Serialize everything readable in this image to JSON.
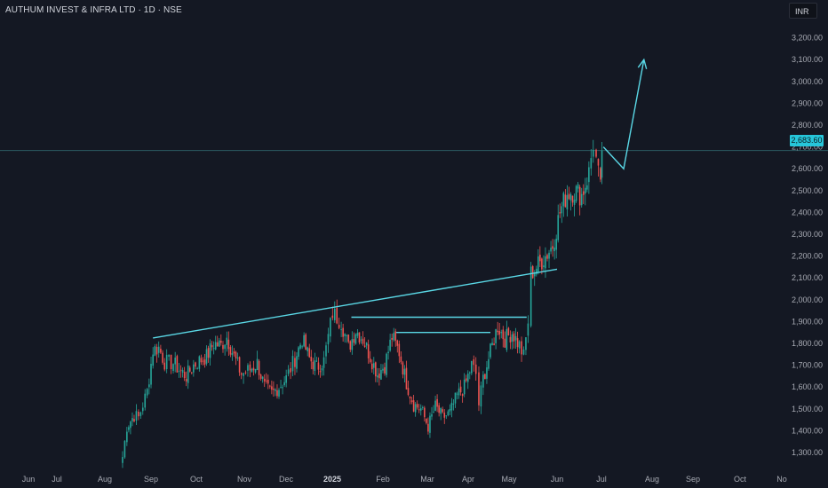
{
  "header": {
    "title": "AUTHUM INVEST & INFRA LTD · 1D · NSE",
    "currency": "INR"
  },
  "price_tag": "2,683.60",
  "colors": {
    "background": "#141823",
    "up": "#26a69a",
    "down": "#ef5350",
    "trendline": "#5ad8e6",
    "price_line": "#2b5a63"
  },
  "chart_data": {
    "type": "candlestick",
    "ylim": [
      1260,
      3260
    ],
    "y_ticks": [
      "1,300.00",
      "1,400.00",
      "1,500.00",
      "1,600.00",
      "1,700.00",
      "1,800.00",
      "1,900.00",
      "2,000.00",
      "2,100.00",
      "2,200.00",
      "2,300.00",
      "2,400.00",
      "2,500.00",
      "2,600.00",
      "2,700.00",
      "2,800.00",
      "2,900.00",
      "3,000.00",
      "3,100.00",
      "3,200.00"
    ],
    "x_ticks": [
      "Jun",
      "Jul",
      "Aug",
      "Sep",
      "Oct",
      "Nov",
      "Dec",
      "2025",
      "Feb",
      "Mar",
      "Apr",
      "May",
      "Jun",
      "Jul",
      "Aug",
      "Sep",
      "Oct",
      "No"
    ],
    "last_price": 2683.6,
    "anchors": [
      [
        "2024-08-05",
        1280
      ],
      [
        "2024-08-08",
        1420
      ],
      [
        "2024-08-13",
        1470
      ],
      [
        "2024-08-16",
        1460
      ],
      [
        "2024-08-22",
        1580
      ],
      [
        "2024-08-26",
        1770
      ],
      [
        "2024-08-30",
        1780
      ],
      [
        "2024-09-03",
        1715
      ],
      [
        "2024-09-09",
        1710
      ],
      [
        "2024-09-13",
        1680
      ],
      [
        "2024-09-18",
        1650
      ],
      [
        "2024-09-23",
        1700
      ],
      [
        "2024-09-27",
        1720
      ],
      [
        "2024-10-02",
        1740
      ],
      [
        "2024-10-07",
        1800
      ],
      [
        "2024-10-12",
        1790
      ],
      [
        "2024-10-16",
        1830
      ],
      [
        "2024-10-21",
        1740
      ],
      [
        "2024-10-26",
        1660
      ],
      [
        "2024-11-01",
        1680
      ],
      [
        "2024-11-06",
        1710
      ],
      [
        "2024-11-11",
        1600
      ],
      [
        "2024-11-16",
        1570
      ],
      [
        "2024-11-21",
        1600
      ],
      [
        "2024-11-26",
        1640
      ],
      [
        "2024-12-02",
        1730
      ],
      [
        "2024-12-07",
        1820
      ],
      [
        "2024-12-12",
        1730
      ],
      [
        "2024-12-17",
        1690
      ],
      [
        "2024-12-22",
        1720
      ],
      [
        "2024-12-28",
        1940
      ],
      [
        "2025-01-03",
        1900
      ],
      [
        "2025-01-08",
        1780
      ],
      [
        "2025-01-13",
        1860
      ],
      [
        "2025-01-18",
        1820
      ],
      [
        "2025-01-23",
        1740
      ],
      [
        "2025-01-28",
        1660
      ],
      [
        "2025-02-02",
        1700
      ],
      [
        "2025-02-07",
        1830
      ],
      [
        "2025-02-12",
        1760
      ],
      [
        "2025-02-17",
        1620
      ],
      [
        "2025-02-22",
        1520
      ],
      [
        "2025-02-27",
        1500
      ],
      [
        "2025-03-04",
        1420
      ],
      [
        "2025-03-09",
        1510
      ],
      [
        "2025-03-14",
        1460
      ],
      [
        "2025-03-19",
        1480
      ],
      [
        "2025-03-24",
        1560
      ],
      [
        "2025-03-29",
        1600
      ],
      [
        "2025-04-03",
        1700
      ],
      [
        "2025-04-06",
        1660
      ],
      [
        "2025-04-08",
        1520
      ],
      [
        "2025-04-11",
        1640
      ],
      [
        "2025-04-16",
        1760
      ],
      [
        "2025-04-21",
        1880
      ],
      [
        "2025-04-26",
        1820
      ],
      [
        "2025-05-01",
        1850
      ],
      [
        "2025-05-06",
        1790
      ],
      [
        "2025-05-09",
        1740
      ],
      [
        "2025-05-12",
        1900
      ],
      [
        "2025-05-14",
        2120
      ],
      [
        "2025-05-19",
        2160
      ],
      [
        "2025-05-24",
        2200
      ],
      [
        "2025-05-29",
        2250
      ],
      [
        "2025-06-03",
        2400
      ],
      [
        "2025-06-08",
        2490
      ],
      [
        "2025-06-13",
        2500
      ],
      [
        "2025-06-18",
        2480
      ],
      [
        "2025-06-23",
        2580
      ],
      [
        "2025-06-26",
        2720
      ],
      [
        "2025-06-28",
        2640
      ],
      [
        "2025-07-01",
        2500
      ],
      [
        "2025-07-02",
        2683.6
      ]
    ],
    "drawings": [
      {
        "name": "rising-trendline",
        "points": [
          [
            "2024-08-26",
            1825
          ],
          [
            "2025-06-01",
            2140
          ]
        ]
      },
      {
        "name": "neckline-upper",
        "points": [
          [
            "2025-01-10",
            1920
          ],
          [
            "2025-05-11",
            1920
          ]
        ]
      },
      {
        "name": "neckline-lower",
        "points": [
          [
            "2025-02-10",
            1850
          ],
          [
            "2025-04-16",
            1850
          ]
        ]
      },
      {
        "name": "projection-arrow",
        "points": [
          [
            "2025-07-03",
            2700
          ],
          [
            "2025-07-17",
            2600
          ],
          [
            "2025-07-31",
            3100
          ]
        ]
      }
    ]
  }
}
